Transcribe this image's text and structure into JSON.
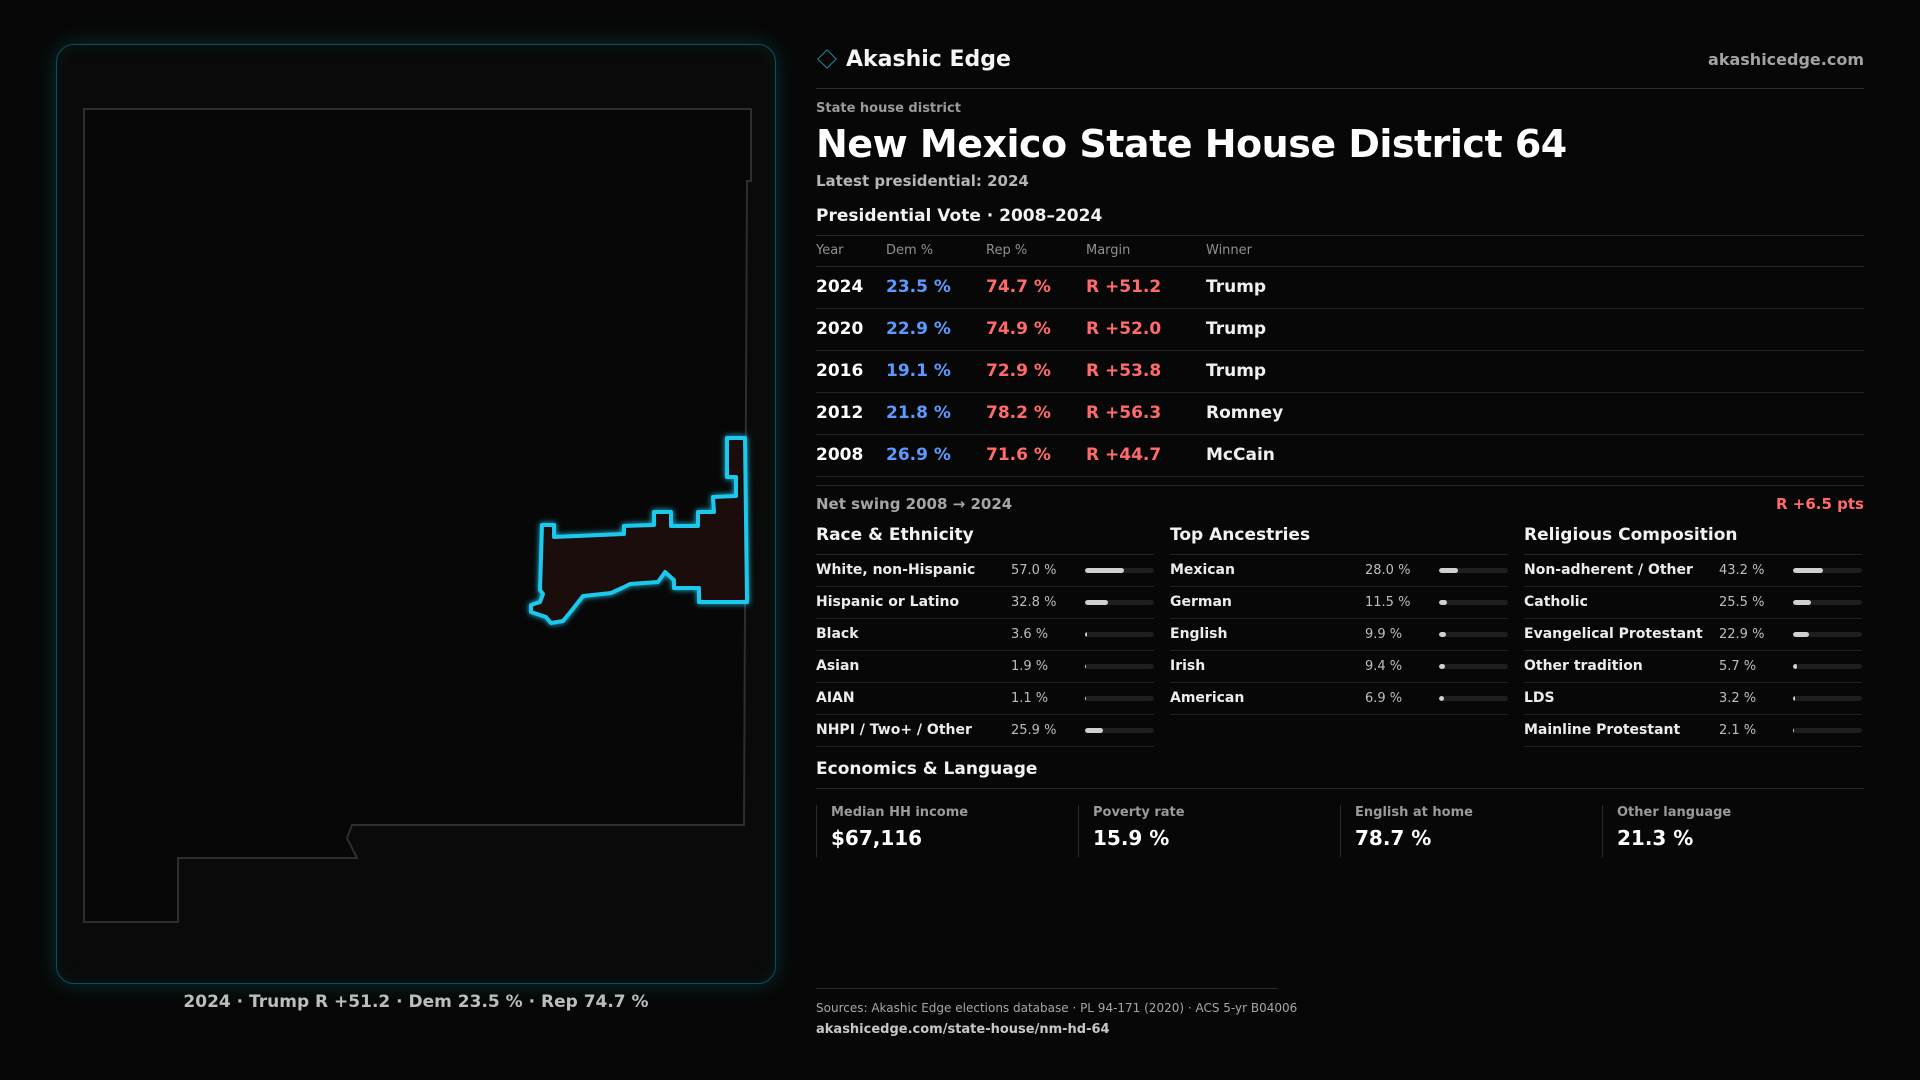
{
  "brand": {
    "name": "Akashic Edge",
    "logo_icon": "diamond-icon",
    "site": "akashicedge.com"
  },
  "district": {
    "type": "State house district",
    "title": "New Mexico State House District 64",
    "latest": "Latest presidential: 2024"
  },
  "map": {
    "caption": "2024 · Trump R +51.2 · Dem 23.5 % · Rep 74.7 %",
    "accent_color": "#1ec8ec",
    "state_outline_color": "#2e2e2e"
  },
  "presidential": {
    "title": "Presidential Vote · 2008–2024",
    "headers": {
      "year": "Year",
      "dem": "Dem %",
      "rep": "Rep %",
      "margin": "Margin",
      "winner": "Winner"
    },
    "rows": [
      {
        "year": "2024",
        "dem": "23.5 %",
        "rep": "74.7 %",
        "margin": "R +51.2",
        "winner": "Trump"
      },
      {
        "year": "2020",
        "dem": "22.9 %",
        "rep": "74.9 %",
        "margin": "R +52.0",
        "winner": "Trump"
      },
      {
        "year": "2016",
        "dem": "19.1 %",
        "rep": "72.9 %",
        "margin": "R +53.8",
        "winner": "Trump"
      },
      {
        "year": "2012",
        "dem": "21.8 %",
        "rep": "78.2 %",
        "margin": "R +56.3",
        "winner": "Romney"
      },
      {
        "year": "2008",
        "dem": "26.9 %",
        "rep": "71.6 %",
        "margin": "R +44.7",
        "winner": "McCain"
      }
    ],
    "swing_label": "Net swing 2008 → 2024",
    "swing_value": "R +6.5 pts"
  },
  "race": {
    "title": "Race & Ethnicity",
    "items": [
      {
        "label": "White, non-Hispanic",
        "pct": "57.0 %",
        "value": 57.0
      },
      {
        "label": "Hispanic or Latino",
        "pct": "32.8 %",
        "value": 32.8
      },
      {
        "label": "Black",
        "pct": "3.6 %",
        "value": 3.6
      },
      {
        "label": "Asian",
        "pct": "1.9 %",
        "value": 1.9
      },
      {
        "label": "AIAN",
        "pct": "1.1 %",
        "value": 1.1
      },
      {
        "label": "NHPI / Two+ / Other",
        "pct": "25.9 %",
        "value": 25.9
      }
    ]
  },
  "ancestry": {
    "title": "Top Ancestries",
    "items": [
      {
        "label": "Mexican",
        "pct": "28.0 %",
        "value": 28.0
      },
      {
        "label": "German",
        "pct": "11.5 %",
        "value": 11.5
      },
      {
        "label": "English",
        "pct": "9.9 %",
        "value": 9.9
      },
      {
        "label": "Irish",
        "pct": "9.4 %",
        "value": 9.4
      },
      {
        "label": "American",
        "pct": "6.9 %",
        "value": 6.9
      }
    ]
  },
  "religion": {
    "title": "Religious Composition",
    "items": [
      {
        "label": "Non-adherent / Other",
        "pct": "43.2 %",
        "value": 43.2
      },
      {
        "label": "Catholic",
        "pct": "25.5 %",
        "value": 25.5
      },
      {
        "label": "Evangelical Protestant",
        "pct": "22.9 %",
        "value": 22.9
      },
      {
        "label": "Other tradition",
        "pct": "5.7 %",
        "value": 5.7
      },
      {
        "label": "LDS",
        "pct": "3.2 %",
        "value": 3.2
      },
      {
        "label": "Mainline Protestant",
        "pct": "2.1 %",
        "value": 2.1
      }
    ]
  },
  "economics": {
    "title": "Economics & Language",
    "stats": [
      {
        "label": "Median HH income",
        "value": "$67,116"
      },
      {
        "label": "Poverty rate",
        "value": "15.9 %"
      },
      {
        "label": "English at home",
        "value": "78.7 %"
      },
      {
        "label": "Other language",
        "value": "21.3 %"
      }
    ]
  },
  "footer": {
    "sources": "Sources: Akashic Edge elections database · PL 94-171 (2020) · ACS 5-yr B04006",
    "url": "akashicedge.com/state-house/nm-hd-64"
  }
}
